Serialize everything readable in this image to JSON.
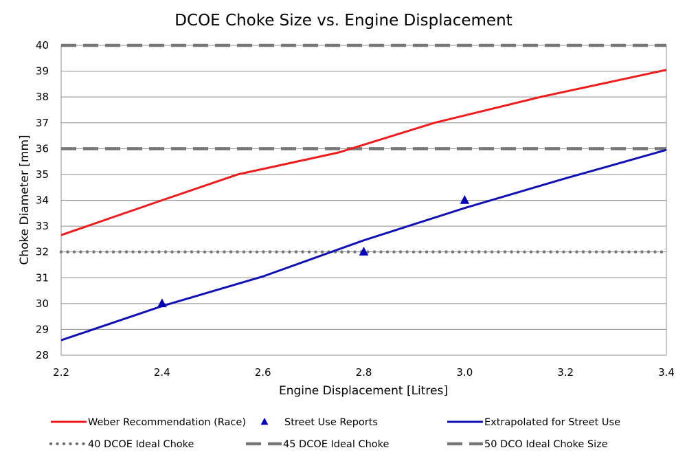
{
  "chart_data": {
    "type": "line",
    "title": "DCOE Choke Size vs. Engine Displacement",
    "xlabel": "Engine Displacement  [Litres]",
    "ylabel": "Choke Diameter [mm]",
    "xlim": [
      2.2,
      3.4
    ],
    "ylim": [
      28,
      40
    ],
    "x_ticks": [
      "2.2",
      "2.4",
      "2.6",
      "2.8",
      "3.0",
      "3.2",
      "3.4"
    ],
    "y_ticks": [
      "28",
      "29",
      "30",
      "31",
      "32",
      "33",
      "34",
      "35",
      "36",
      "37",
      "38",
      "39",
      "40"
    ],
    "grid": "horizontal",
    "legend_position": "bottom",
    "series": [
      {
        "name": "Weber Recommendation (Race)",
        "kind": "line",
        "style": "solid",
        "color": "#ee1c1c",
        "points": [
          [
            2.2,
            32.65
          ],
          [
            2.4,
            34.0
          ],
          [
            2.55,
            35.0
          ],
          [
            2.75,
            35.85
          ],
          [
            2.94,
            37.0
          ],
          [
            3.15,
            38.0
          ],
          [
            3.4,
            39.05
          ]
        ]
      },
      {
        "name": "Street Use Reports",
        "kind": "marker",
        "marker": "triangle",
        "color": "#0000bb",
        "points": [
          [
            2.4,
            30.0
          ],
          [
            2.8,
            32.0
          ],
          [
            3.0,
            34.0
          ]
        ]
      },
      {
        "name": "Extrapolated for Street Use",
        "kind": "line",
        "style": "solid",
        "color": "#1010b4",
        "points": [
          [
            2.2,
            28.58
          ],
          [
            2.4,
            29.9
          ],
          [
            2.6,
            31.05
          ],
          [
            2.8,
            32.45
          ],
          [
            3.0,
            33.7
          ],
          [
            3.2,
            34.85
          ],
          [
            3.4,
            35.95
          ]
        ]
      },
      {
        "name": "40 DCOE Ideal Choke",
        "kind": "hline",
        "style": "dotted",
        "color": "#777777",
        "y": 32
      },
      {
        "name": "45 DCOE Ideal Choke",
        "kind": "hline",
        "style": "dashed",
        "color": "#777777",
        "y": 36
      },
      {
        "name": "50 DCO Ideal Choke Size",
        "kind": "hline",
        "style": "dashed",
        "color": "#777777",
        "y": 40
      }
    ]
  }
}
